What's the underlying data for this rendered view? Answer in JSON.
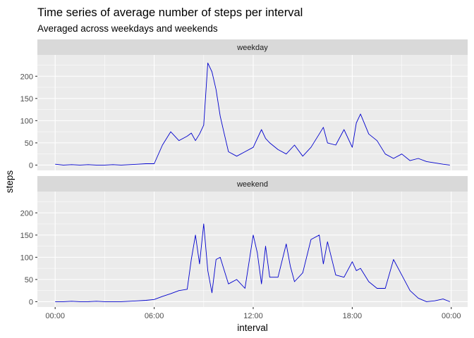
{
  "chart_data": {
    "type": "line",
    "title": "Time series of average number of steps per interval",
    "subtitle": "Averaged across weekdays and weekends",
    "xlabel": "interval",
    "ylabel": "steps",
    "x_unit": "minutes since midnight",
    "xlim": [
      0,
      1435
    ],
    "ylim": [
      -12,
      248
    ],
    "x_ticks": [
      0,
      360,
      720,
      1080,
      1440
    ],
    "x_tick_labels": [
      "00:00",
      "06:00",
      "12:00",
      "18:00",
      "00:00"
    ],
    "y_ticks": [
      0,
      50,
      100,
      150,
      200
    ],
    "y_tick_labels": [
      "0",
      "50",
      "100",
      "150",
      "200"
    ],
    "grid": true,
    "line_color": "#0000CD",
    "panels": [
      {
        "label": "weekday",
        "x": [
          0,
          30,
          60,
          90,
          120,
          150,
          180,
          210,
          240,
          270,
          300,
          330,
          360,
          390,
          420,
          450,
          480,
          495,
          510,
          525,
          540,
          555,
          570,
          585,
          600,
          615,
          630,
          660,
          690,
          720,
          750,
          765,
          780,
          810,
          840,
          870,
          900,
          930,
          960,
          975,
          990,
          1020,
          1050,
          1080,
          1095,
          1110,
          1140,
          1170,
          1200,
          1230,
          1260,
          1290,
          1320,
          1350,
          1380,
          1410,
          1435
        ],
        "values": [
          2,
          0,
          1,
          0,
          1,
          0,
          0,
          1,
          0,
          1,
          2,
          3,
          3,
          45,
          75,
          55,
          65,
          72,
          55,
          70,
          90,
          230,
          210,
          170,
          110,
          70,
          30,
          20,
          30,
          40,
          80,
          60,
          50,
          35,
          25,
          45,
          20,
          40,
          70,
          85,
          50,
          45,
          80,
          40,
          95,
          115,
          70,
          55,
          25,
          15,
          25,
          10,
          15,
          8,
          5,
          2,
          0
        ]
      },
      {
        "label": "weekend",
        "x": [
          0,
          30,
          60,
          90,
          120,
          150,
          180,
          210,
          240,
          270,
          300,
          330,
          360,
          390,
          420,
          450,
          480,
          495,
          510,
          525,
          540,
          555,
          570,
          585,
          600,
          615,
          630,
          660,
          690,
          720,
          735,
          750,
          765,
          780,
          810,
          840,
          855,
          870,
          900,
          930,
          960,
          975,
          990,
          1020,
          1050,
          1080,
          1095,
          1110,
          1140,
          1170,
          1200,
          1230,
          1260,
          1290,
          1320,
          1350,
          1380,
          1410,
          1435
        ],
        "values": [
          0,
          0,
          1,
          0,
          0,
          1,
          0,
          0,
          0,
          1,
          2,
          3,
          5,
          12,
          18,
          25,
          28,
          95,
          150,
          85,
          175,
          70,
          20,
          95,
          100,
          70,
          40,
          50,
          30,
          150,
          110,
          40,
          125,
          55,
          55,
          130,
          80,
          45,
          65,
          140,
          150,
          85,
          135,
          60,
          55,
          90,
          70,
          75,
          45,
          30,
          30,
          95,
          60,
          25,
          8,
          0,
          2,
          6,
          0
        ]
      }
    ]
  }
}
